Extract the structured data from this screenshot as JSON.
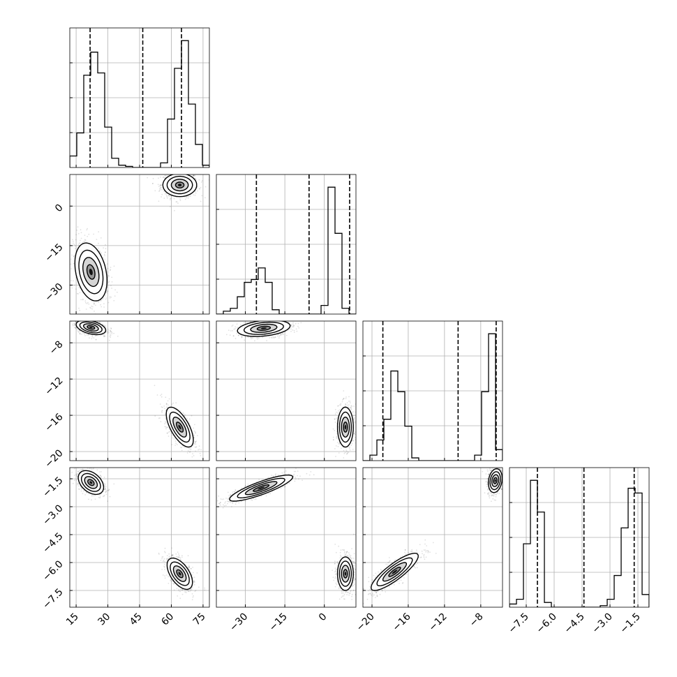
{
  "chart_data": {
    "type": "corner",
    "grid": true,
    "colors": {
      "line": "#000000",
      "grid": "#b0b0b0",
      "scatter": "#000000"
    },
    "parameters": [
      {
        "range": [
          12,
          78
        ],
        "ticks": [
          15,
          30,
          45,
          60,
          75
        ],
        "tick_labels": [
          "15",
          "30",
          "45",
          "60",
          "75"
        ],
        "quantiles": [
          21.6,
          46.5,
          64.8
        ]
      },
      {
        "range": [
          -41,
          12
        ],
        "ticks": [
          -30,
          -15,
          0
        ],
        "tick_labels": [
          "−30",
          "−15",
          "0"
        ],
        "quantiles": [
          -25.8,
          -5.8,
          9.6
        ]
      },
      {
        "range": [
          -21,
          -5.6
        ],
        "ticks": [
          -20,
          -16,
          -12,
          -8
        ],
        "tick_labels": [
          "−20",
          "−16",
          "−12",
          "−8"
        ],
        "quantiles": [
          -18.8,
          -10.5,
          -6.3
        ]
      },
      {
        "range": [
          -8.4,
          -0.9
        ],
        "ticks": [
          -7.5,
          -6.0,
          -4.5,
          -3.0,
          -1.5
        ],
        "tick_labels": [
          "−7.5",
          "−6.0",
          "−4.5",
          "−3.0",
          "−1.5"
        ],
        "quantiles": [
          -6.9,
          -4.4,
          -1.7
        ]
      }
    ],
    "histograms": [
      {
        "values": [
          0.1,
          0.3,
          0.8,
          1.0,
          0.82,
          0.35,
          0.08,
          0.02,
          0.01,
          0,
          0,
          0,
          0,
          0.04,
          0.42,
          0.86,
          1.1,
          0.55,
          0.2,
          0.02
        ]
      },
      {
        "values": [
          0,
          0.02,
          0.04,
          0.12,
          0.22,
          0.24,
          0.32,
          0.22,
          0.03,
          0,
          0,
          0,
          0,
          0,
          0,
          0.06,
          0.88,
          0.56,
          0.04,
          0
        ]
      },
      {
        "values": [
          0,
          0.04,
          0.15,
          0.3,
          0.65,
          0.5,
          0.25,
          0.02,
          0,
          0,
          0,
          0,
          0,
          0,
          0,
          0,
          0.04,
          0.5,
          0.92,
          0.08
        ]
      },
      {
        "values": [
          0.02,
          0.05,
          0.4,
          0.8,
          0.6,
          0.03,
          0,
          0,
          0,
          0,
          0,
          0,
          0,
          0.01,
          0.05,
          0.2,
          0.5,
          0.75,
          0.72,
          0.08
        ]
      }
    ],
    "clusters": [
      {
        "i": 0,
        "j": 1,
        "modes": [
          {
            "mean": [
              64,
              8
            ],
            "sd": [
              4,
              2.2
            ],
            "rho": 0
          },
          {
            "mean": [
              22,
              -25
            ],
            "sd": [
              3.8,
              5.5
            ],
            "rho": -0.3
          }
        ]
      },
      {
        "i": 0,
        "j": 2,
        "modes": [
          {
            "mean": [
              64,
              -17.3
            ],
            "sd": [
              3.2,
              1.1
            ],
            "rho": -0.65
          },
          {
            "mean": [
              22,
              -6.3
            ],
            "sd": [
              3.5,
              0.4
            ],
            "rho": -0.4
          }
        ]
      },
      {
        "i": 1,
        "j": 2,
        "modes": [
          {
            "mean": [
              8,
              -17.3
            ],
            "sd": [
              1.5,
              1.1
            ],
            "rho": 0
          },
          {
            "mean": [
              -23,
              -6.4
            ],
            "sd": [
              5,
              0.45
            ],
            "rho": 0.3
          }
        ]
      },
      {
        "i": 0,
        "j": 3,
        "modes": [
          {
            "mean": [
              64,
              -6.6
            ],
            "sd": [
              3,
              0.42
            ],
            "rho": -0.55
          },
          {
            "mean": [
              22,
              -1.7
            ],
            "sd": [
              3,
              0.32
            ],
            "rho": -0.4
          }
        ]
      },
      {
        "i": 1,
        "j": 3,
        "modes": [
          {
            "mean": [
              8,
              -6.6
            ],
            "sd": [
              1.5,
              0.45
            ],
            "rho": 0
          },
          {
            "mean": [
              -24,
              -2.0
            ],
            "sd": [
              6,
              0.35
            ],
            "rho": 0.85
          }
        ]
      },
      {
        "i": 2,
        "j": 3,
        "modes": [
          {
            "mean": [
              -6.4,
              -1.6
            ],
            "sd": [
              0.38,
              0.32
            ],
            "rho": 0.2
          },
          {
            "mean": [
              -17.5,
              -6.5
            ],
            "sd": [
              1.3,
              0.5
            ],
            "rho": 0.85
          }
        ]
      }
    ]
  }
}
